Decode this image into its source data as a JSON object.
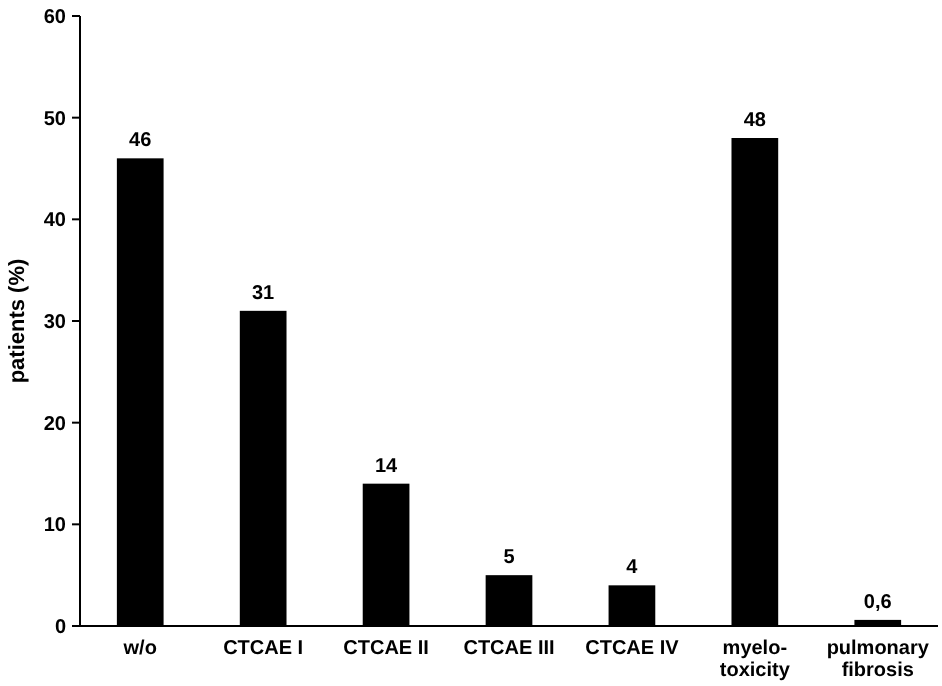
{
  "chart_data": {
    "type": "bar",
    "ylabel": "patients (%)",
    "categories": [
      "w/o",
      "CTCAE I",
      "CTCAE II",
      "CTCAE III",
      "CTCAE IV",
      "myelo-\ntoxicity",
      "pulmonary\nfibrosis"
    ],
    "values": [
      46,
      31,
      14,
      5,
      4,
      48,
      0.6
    ],
    "value_labels": [
      "46",
      "31",
      "14",
      "5",
      "4",
      "48",
      "0,6"
    ],
    "color": "#000000",
    "ylim": [
      0,
      60
    ],
    "yticks": [
      0,
      10,
      20,
      30,
      40,
      50,
      60
    ]
  }
}
